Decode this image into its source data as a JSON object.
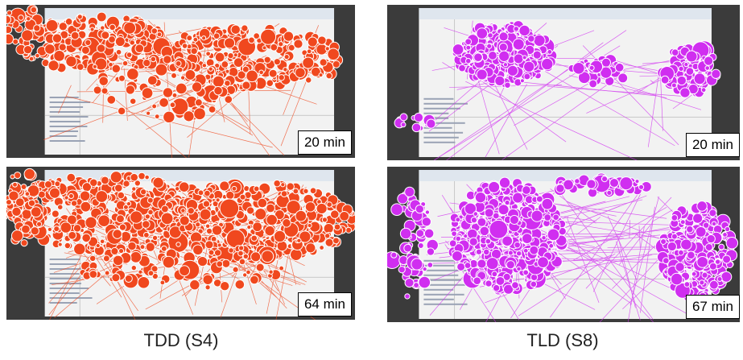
{
  "panels": {
    "tdd_20": {
      "label": "20 min",
      "color": "#f0481e"
    },
    "tld_20": {
      "label": "20 min",
      "color": "#d02ef0"
    },
    "tdd_64": {
      "label": "64 min",
      "color": "#f0481e"
    },
    "tld_67": {
      "label": "67 min",
      "color": "#d02ef0"
    }
  },
  "captions": {
    "tdd": "TDD (S4)",
    "tld": "TLD (S8)"
  },
  "colors": {
    "background": "#3b3b3b",
    "ide_window": "#f2f2f2",
    "tdd_fixation": "#f0481e",
    "tld_fixation": "#d02ef0",
    "fixation_outline": "#ffffff"
  }
}
